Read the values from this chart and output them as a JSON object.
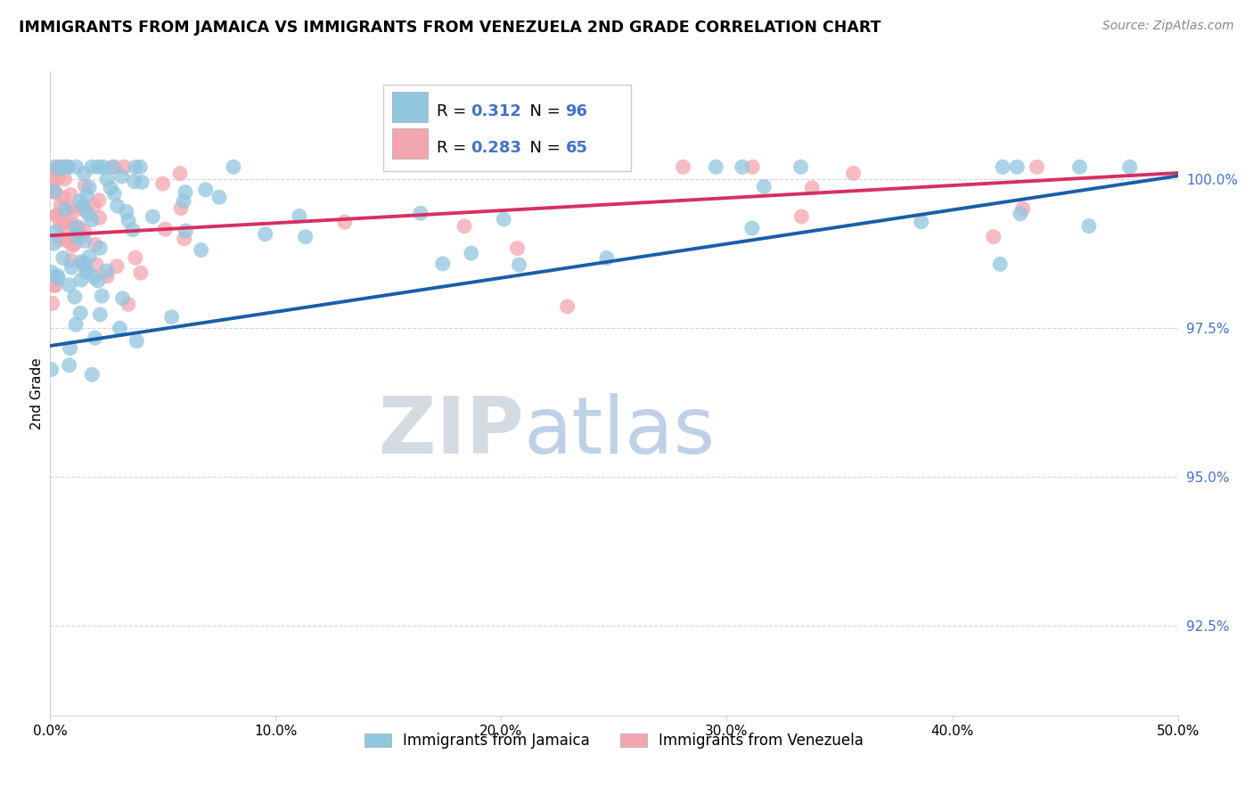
{
  "title": "IMMIGRANTS FROM JAMAICA VS IMMIGRANTS FROM VENEZUELA 2ND GRADE CORRELATION CHART",
  "source": "Source: ZipAtlas.com",
  "ylabel": "2nd Grade",
  "legend_label_1": "Immigrants from Jamaica",
  "legend_label_2": "Immigrants from Venezuela",
  "r1": 0.312,
  "n1": 96,
  "r2": 0.283,
  "n2": 65,
  "color1": "#92c5de",
  "color2": "#f4a6b0",
  "trend_color1": "#1a5ea8",
  "trend_color2": "#d63060",
  "xlim": [
    0.0,
    50.0
  ],
  "ylim": [
    91.0,
    101.8
  ],
  "yticks": [
    92.5,
    95.0,
    97.5,
    100.0
  ],
  "xtick_values": [
    0.0,
    10.0,
    20.0,
    30.0,
    40.0,
    50.0
  ],
  "xtick_labels": [
    "0.0%",
    "10.0%",
    "20.0%",
    "30.0%",
    "40.0%",
    "50.0%"
  ],
  "background_color": "#ffffff",
  "watermark_zip": "ZIP",
  "watermark_atlas": "atlas"
}
